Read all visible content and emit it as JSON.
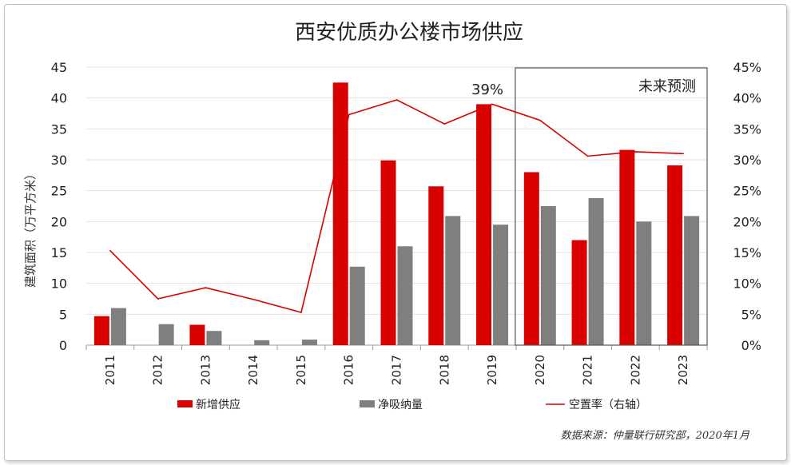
{
  "chart_data": {
    "type": "bar",
    "title": "西安优质办公楼市场供应",
    "categories": [
      "2011",
      "2012",
      "2013",
      "2014",
      "2015",
      "2016",
      "2017",
      "2018",
      "2019",
      "2020",
      "2021",
      "2022",
      "2023"
    ],
    "series": [
      {
        "name": "新增供应",
        "type": "bar",
        "axis": "left",
        "color": "#d90000",
        "values": [
          4.7,
          0,
          3.3,
          0,
          0,
          42.5,
          29.9,
          25.7,
          39.0,
          28.0,
          17.0,
          31.6,
          29.1
        ]
      },
      {
        "name": "净吸纳量",
        "type": "bar",
        "axis": "left",
        "color": "#7f7f7f",
        "values": [
          6.0,
          3.4,
          2.3,
          0.8,
          0.9,
          12.7,
          16.0,
          20.9,
          19.5,
          22.5,
          23.8,
          20.0,
          20.9
        ]
      },
      {
        "name": "空置率（右轴）",
        "type": "line",
        "axis": "right",
        "color": "#d90000",
        "values": [
          15.3,
          7.5,
          9.3,
          7.4,
          5.3,
          37.3,
          39.7,
          35.8,
          39.0,
          36.4,
          30.6,
          31.3,
          31.0
        ]
      }
    ],
    "ylabel": "建筑面积（万平方米）",
    "ylim": [
      0,
      45
    ],
    "yticks": [
      "0",
      "5",
      "10",
      "15",
      "20",
      "25",
      "30",
      "35",
      "40",
      "45"
    ],
    "y2lim": [
      0,
      45
    ],
    "y2ticks": [
      "0%",
      "5%",
      "10%",
      "15%",
      "20%",
      "25%",
      "30%",
      "35%",
      "40%",
      "45%"
    ],
    "grid": true,
    "legend_position": "bottom",
    "annotations": {
      "peak_label": "39%",
      "forecast_label": "未来预测"
    },
    "forecast_start_index": 9,
    "source": "数据来源：仲量联行研究部，2020年1月"
  }
}
